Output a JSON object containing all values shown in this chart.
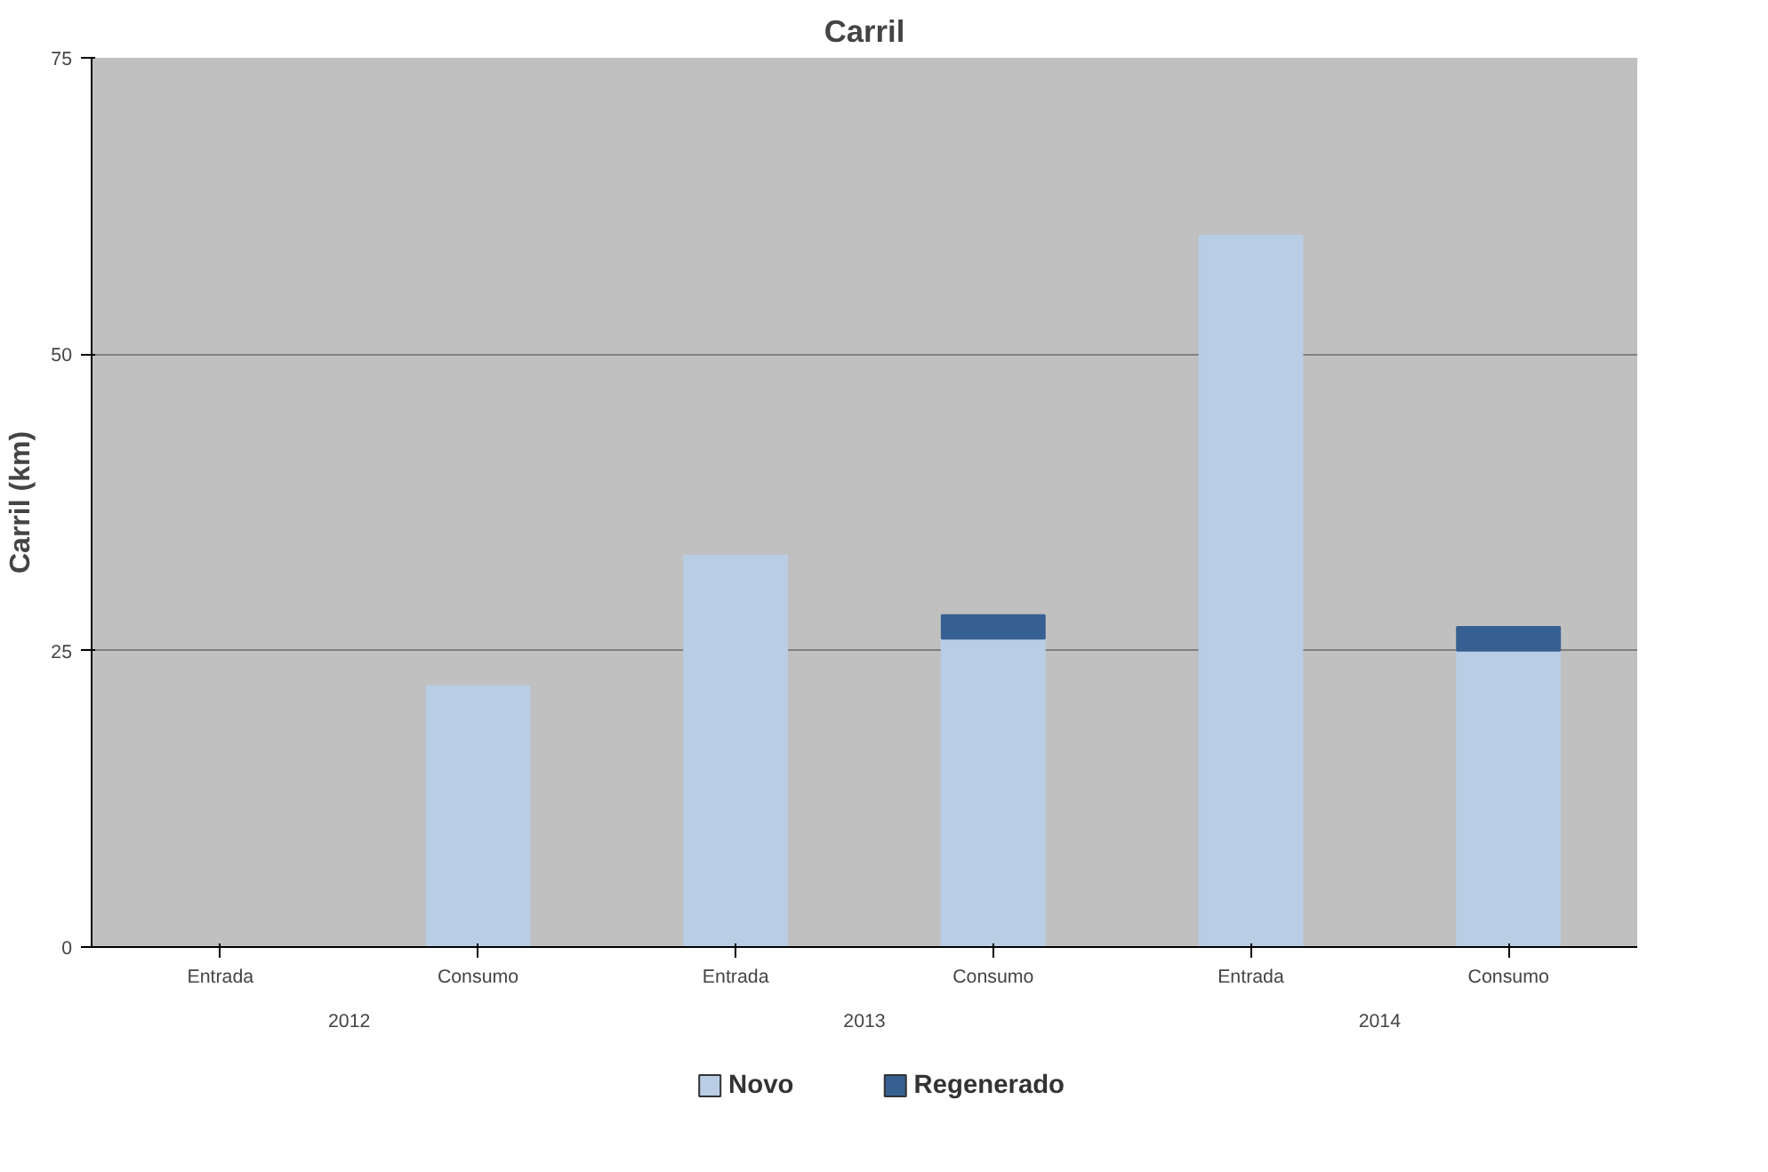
{
  "chart_data": {
    "type": "bar",
    "title": "Carril",
    "ylabel": "Carril (km)",
    "categories": [
      "Entrada",
      "Consumo",
      "Entrada",
      "Consumo",
      "Entrada",
      "Consumo"
    ],
    "series": [
      {
        "name": "Novo",
        "color": "#b9cde5",
        "values": [
          null,
          22,
          33,
          26,
          60,
          25
        ]
      },
      {
        "name": "Regenerado",
        "color": "#376092",
        "values": [
          null,
          null,
          null,
          2,
          null,
          2
        ]
      }
    ],
    "stacked": true,
    "ylim": [
      0,
      75
    ],
    "yticks": [
      0,
      25,
      50,
      75
    ],
    "grid": "y",
    "legend": "bottom",
    "annotations": [
      "2012",
      "2013",
      "2014"
    ]
  }
}
